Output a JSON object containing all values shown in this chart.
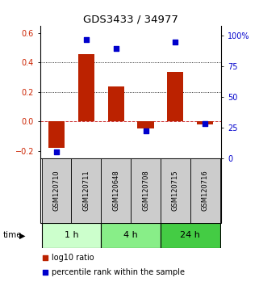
{
  "title": "GDS3433 / 34977",
  "samples": [
    "GSM120710",
    "GSM120711",
    "GSM120648",
    "GSM120708",
    "GSM120715",
    "GSM120716"
  ],
  "log10_ratio": [
    -0.18,
    0.455,
    0.235,
    -0.05,
    0.335,
    -0.02
  ],
  "percentile_rank": [
    5,
    97,
    90,
    22,
    95,
    28
  ],
  "bar_color": "#bb2200",
  "dot_color": "#0000cc",
  "left_ylim": [
    -0.25,
    0.65
  ],
  "right_ylim": [
    0,
    108.333
  ],
  "left_yticks": [
    -0.2,
    0.0,
    0.2,
    0.4,
    0.6
  ],
  "right_yticks": [
    0,
    25,
    50,
    75,
    100
  ],
  "right_yticklabels": [
    "0",
    "25",
    "50",
    "75",
    "100%"
  ],
  "dotted_lines": [
    0.2,
    0.4
  ],
  "dashed_zero": 0.0,
  "time_groups": [
    {
      "label": "1 h",
      "start": 0,
      "end": 2,
      "color": "#ccffcc"
    },
    {
      "label": "4 h",
      "start": 2,
      "end": 4,
      "color": "#88ee88"
    },
    {
      "label": "24 h",
      "start": 4,
      "end": 6,
      "color": "#44cc44"
    }
  ],
  "legend_red_label": "log10 ratio",
  "legend_blue_label": "percentile rank within the sample",
  "xlabel_time": "time",
  "bg_color": "#ffffff",
  "sample_box_color": "#cccccc",
  "bar_width": 0.55
}
